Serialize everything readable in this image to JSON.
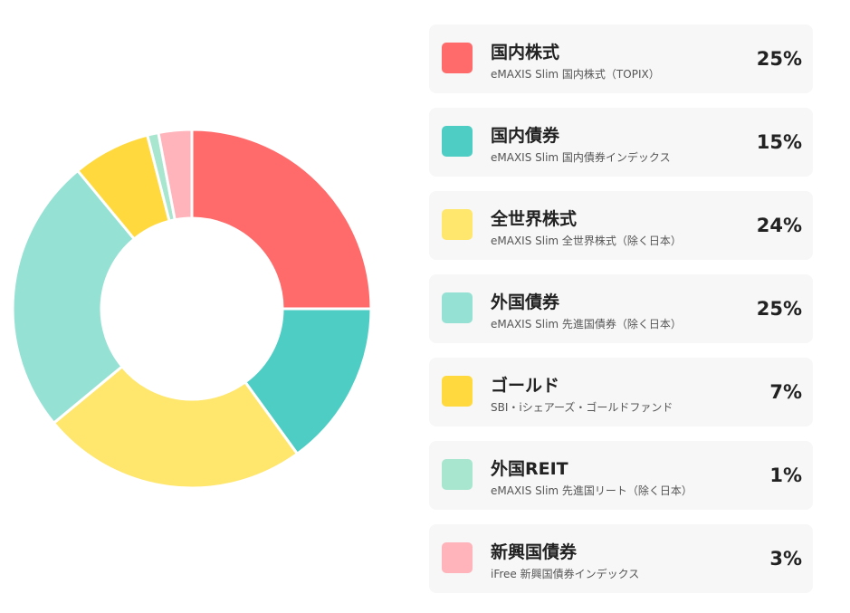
{
  "chart_data": {
    "type": "pie",
    "donut": true,
    "categories": [
      "国内株式",
      "国内債券",
      "全世界株式",
      "外国債券",
      "ゴールド",
      "外国REIT",
      "新興国債券"
    ],
    "values": [
      25,
      15,
      24,
      25,
      7,
      1,
      3
    ],
    "unit": "%",
    "title": "",
    "colors": [
      "#ff6b6b",
      "#4ecdc4",
      "#ffe66d",
      "#95e1d3",
      "#ffd93d",
      "#a8e6cf",
      "#ffb3ba"
    ]
  },
  "legend": {
    "items": [
      {
        "name": "国内株式",
        "fund": "eMAXIS Slim 国内株式（TOPIX）",
        "percent": "25%",
        "color": "#ff6b6b"
      },
      {
        "name": "国内債券",
        "fund": "eMAXIS Slim 国内債券インデックス",
        "percent": "15%",
        "color": "#4ecdc4"
      },
      {
        "name": "全世界株式",
        "fund": "eMAXIS Slim 全世界株式（除く日本）",
        "percent": "24%",
        "color": "#ffe66d"
      },
      {
        "name": "外国債券",
        "fund": "eMAXIS Slim 先進国債券（除く日本）",
        "percent": "25%",
        "color": "#95e1d3"
      },
      {
        "name": "ゴールド",
        "fund": "SBI・iシェアーズ・ゴールドファンド",
        "percent": "7%",
        "color": "#ffd93d"
      },
      {
        "name": "外国REIT",
        "fund": "eMAXIS Slim 先進国リート（除く日本）",
        "percent": "1%",
        "color": "#a8e6cf"
      },
      {
        "name": "新興国債券",
        "fund": "iFree 新興国債券インデックス",
        "percent": "3%",
        "color": "#ffb3ba"
      }
    ]
  }
}
